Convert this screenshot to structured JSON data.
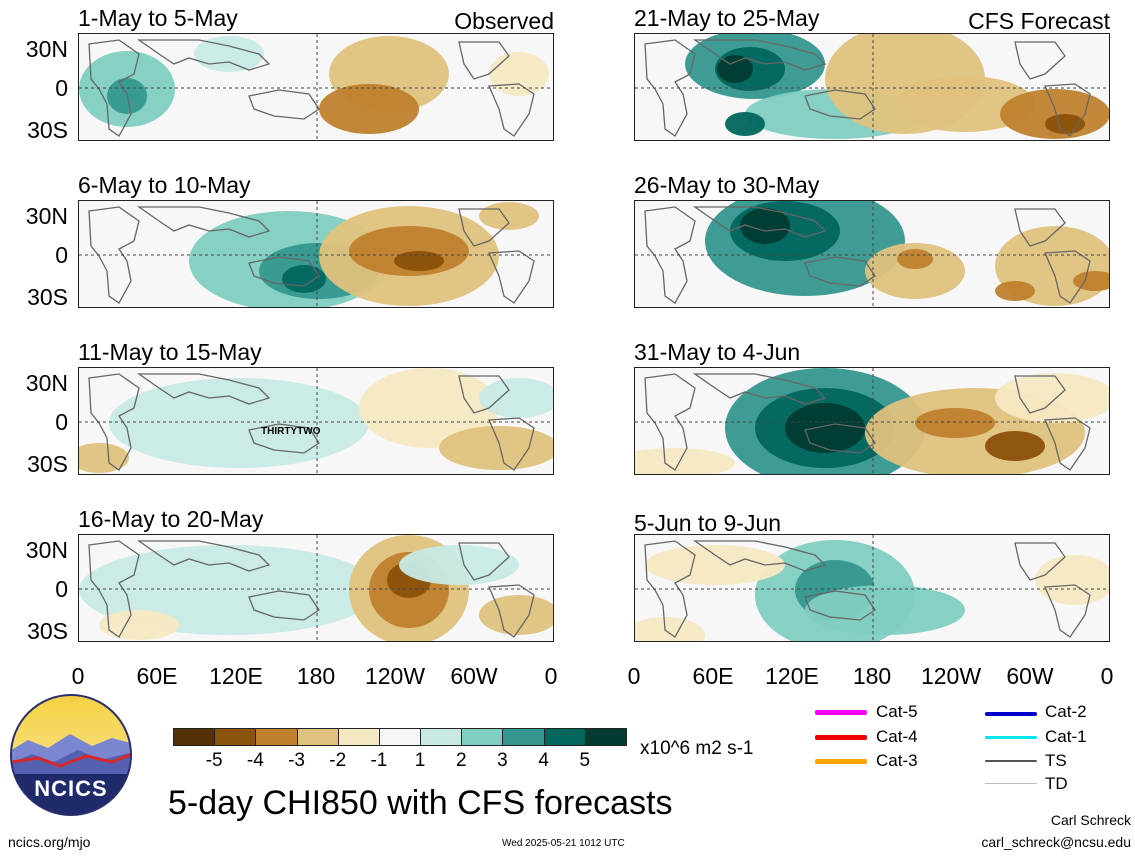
{
  "header": {
    "left_label": "Observed",
    "right_label": "CFS Forecast"
  },
  "panels": [
    {
      "id": "p1",
      "title": "1-May to 5-May"
    },
    {
      "id": "p2",
      "title": "21-May to 25-May"
    },
    {
      "id": "p3",
      "title": "6-May to 10-May"
    },
    {
      "id": "p4",
      "title": "26-May to 30-May"
    },
    {
      "id": "p5",
      "title": "11-May to 15-May",
      "annotation": "THIRTYTWO"
    },
    {
      "id": "p6",
      "title": "31-May to 4-Jun"
    },
    {
      "id": "p7",
      "title": "16-May to 20-May"
    },
    {
      "id": "p8",
      "title": "5-Jun to 9-Jun"
    }
  ],
  "axes": {
    "y_ticks": [
      "30N",
      "0",
      "30S"
    ],
    "x_ticks": [
      "0",
      "60E",
      "120E",
      "180",
      "120W",
      "60W",
      "0"
    ]
  },
  "colorbar": {
    "labels": [
      "-5",
      "-4",
      "-3",
      "-2",
      "-1",
      "1",
      "2",
      "3",
      "4",
      "5"
    ],
    "units": "x10^6 m2 s-1",
    "colors": [
      "#543005",
      "#8c510a",
      "#bf812d",
      "#dfc27d",
      "#f6e8c3",
      "#f5f5f5",
      "#c7eae5",
      "#80cdc1",
      "#35978f",
      "#01665e",
      "#003c30"
    ]
  },
  "storm_legend": [
    {
      "label": "Cat-5",
      "color": "#ff00ff"
    },
    {
      "label": "Cat-4",
      "color": "#ee0000"
    },
    {
      "label": "Cat-3",
      "color": "#ffa500"
    },
    {
      "label": "Cat-2",
      "color": "#0000cc"
    },
    {
      "label": "Cat-1",
      "color": "#00e5ee"
    },
    {
      "label": "TS",
      "color": "#555555"
    },
    {
      "label": "TD",
      "color": "#bbbbbb"
    }
  ],
  "footer": {
    "logo_text": "NCICS",
    "title": "5-day CHI850 with CFS forecasts",
    "url": "ncics.org/mjo",
    "timestamp": "Wed 2025-05-21 1012 UTC",
    "author": "Carl Schreck",
    "email": "carl_schreck@ncsu.edu"
  }
}
